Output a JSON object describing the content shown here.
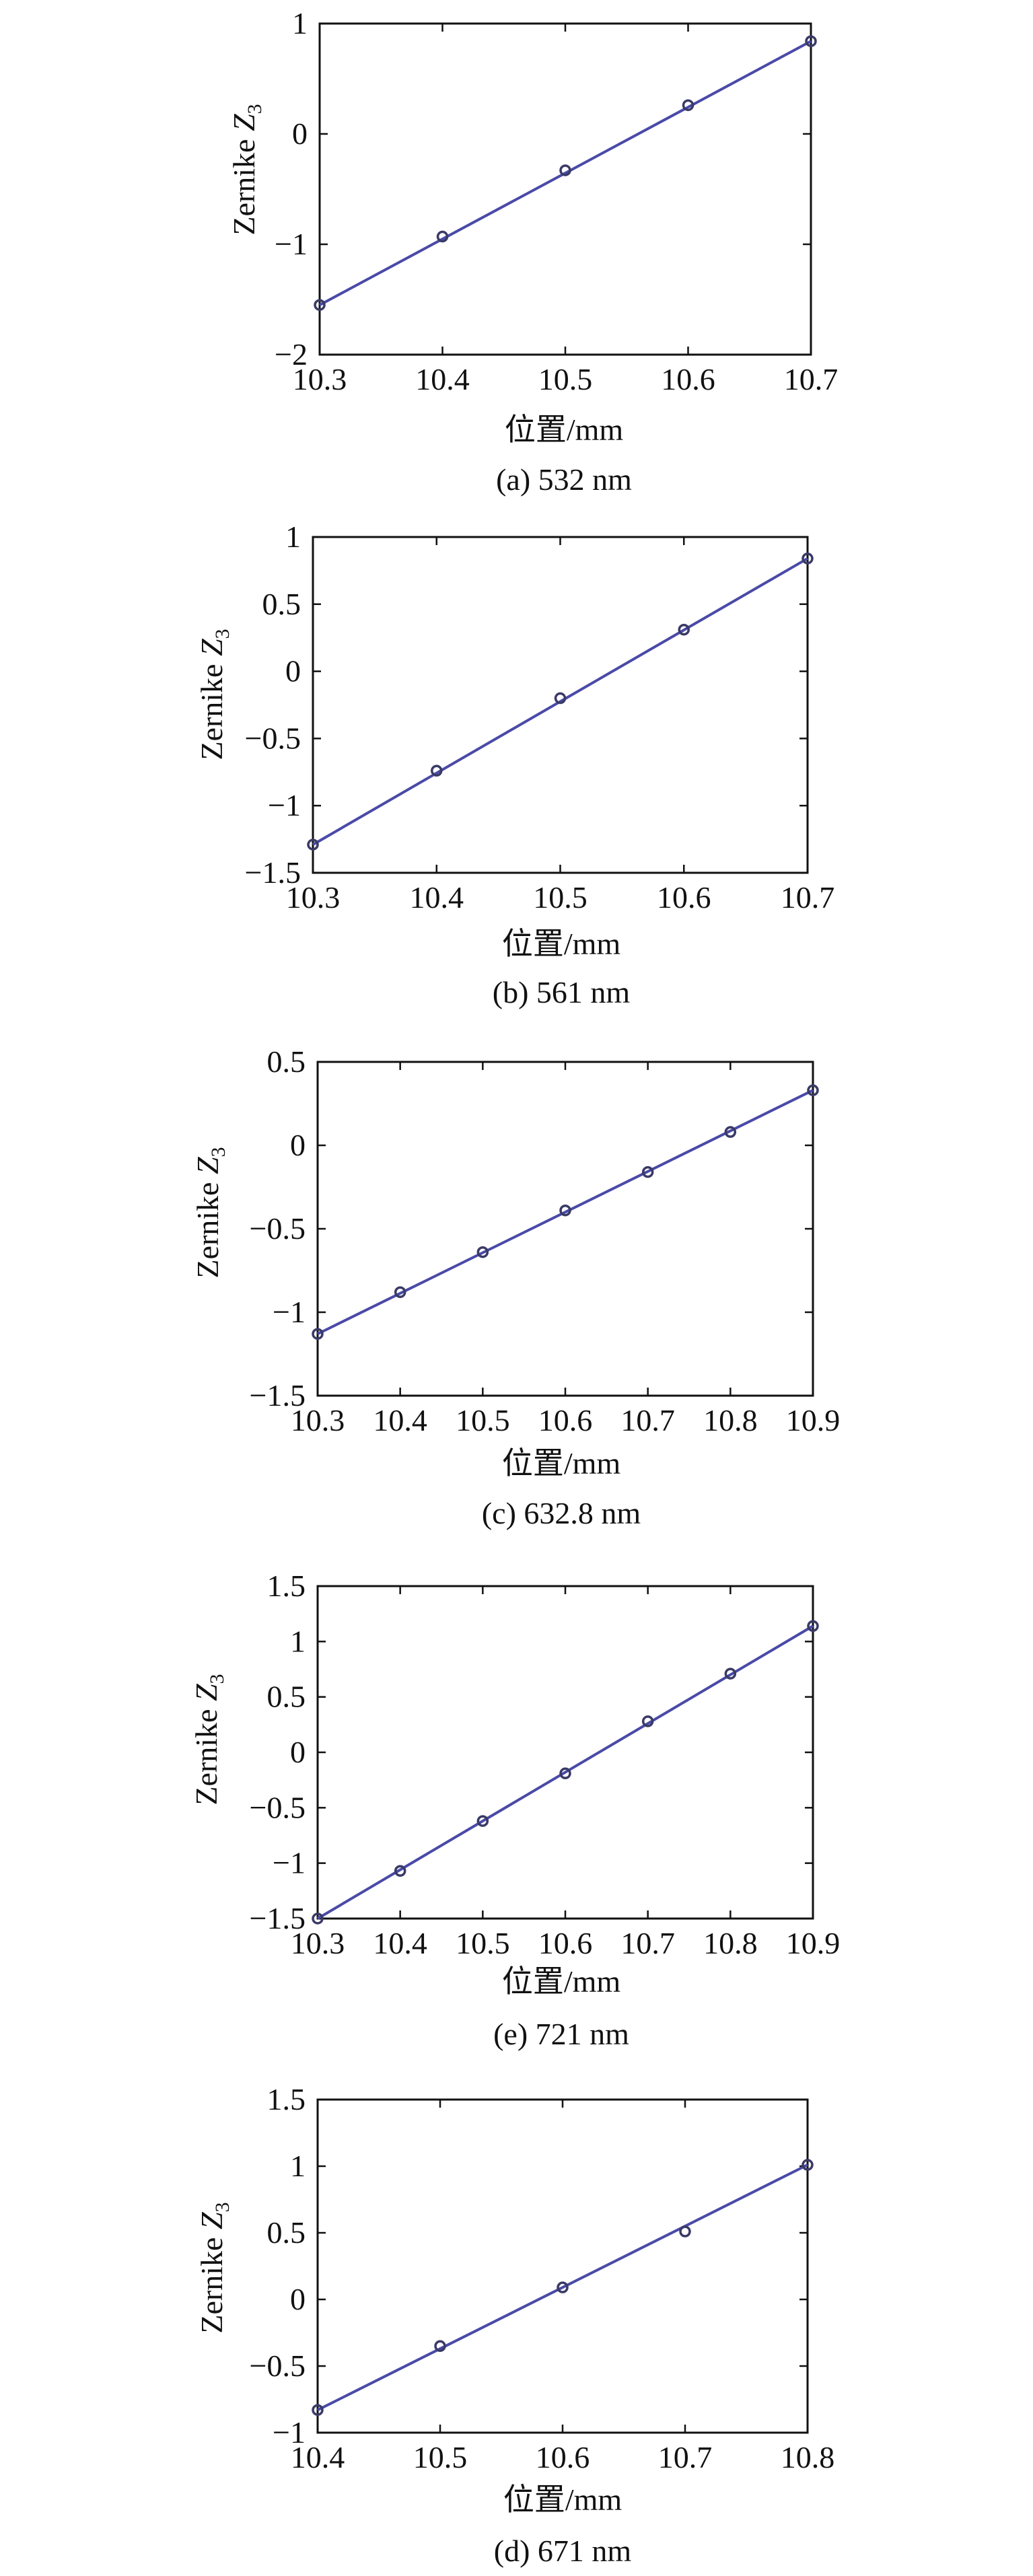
{
  "charts": [
    {
      "caption": "(a) 532 nm",
      "xlabel": "位置/mm",
      "ylabel_main": "Zernike ",
      "ylabel_var": "Z",
      "ylabel_sub": "3",
      "xlim": [
        10.3,
        10.7
      ],
      "ylim": [
        -2,
        1
      ],
      "xticks": [
        "10.3",
        "10.4",
        "10.5",
        "10.6",
        "10.7"
      ],
      "yticks": [
        "−2",
        "−1",
        "0",
        "1"
      ]
    },
    {
      "caption": "(b) 561 nm",
      "xlabel": "位置/mm",
      "ylabel_main": "Zernike ",
      "ylabel_var": "Z",
      "ylabel_sub": "3",
      "xlim": [
        10.3,
        10.7
      ],
      "ylim": [
        -1.5,
        1
      ],
      "xticks": [
        "10.3",
        "10.4",
        "10.5",
        "10.6",
        "10.7"
      ],
      "yticks": [
        "−1.5",
        "−1",
        "−0.5",
        "0",
        "0.5",
        "1"
      ]
    },
    {
      "caption": "(c) 632.8 nm",
      "xlabel": "位置/mm",
      "ylabel_main": "Zernike ",
      "ylabel_var": "Z",
      "ylabel_sub": "3",
      "xlim": [
        10.3,
        10.9
      ],
      "ylim": [
        -1.5,
        0.5
      ],
      "xticks": [
        "10.3",
        "10.4",
        "10.5",
        "10.6",
        "10.7",
        "10.8",
        "10.9"
      ],
      "yticks": [
        "−1.5",
        "−1",
        "−0.5",
        "0",
        "0.5"
      ]
    },
    {
      "caption": "(e) 721 nm",
      "xlabel": "位置/mm",
      "ylabel_main": "Zernike ",
      "ylabel_var": "Z",
      "ylabel_sub": "3",
      "xlim": [
        10.3,
        10.9
      ],
      "ylim": [
        -1.5,
        1.5
      ],
      "xticks": [
        "10.3",
        "10.4",
        "10.5",
        "10.6",
        "10.7",
        "10.8",
        "10.9"
      ],
      "yticks": [
        "−1.5",
        "−1",
        "−0.5",
        "0",
        "0.5",
        "1",
        "1.5"
      ]
    },
    {
      "caption": "(d) 671 nm",
      "xlabel": "位置/mm",
      "ylabel_main": "Zernike ",
      "ylabel_var": "Z",
      "ylabel_sub": "3",
      "xlim": [
        10.4,
        10.8
      ],
      "ylim": [
        -1,
        1.5
      ],
      "xticks": [
        "10.4",
        "10.5",
        "10.6",
        "10.7",
        "10.8"
      ],
      "yticks": [
        "−1",
        "−0.5",
        "0",
        "0.5",
        "1",
        "1.5"
      ]
    }
  ],
  "chart_data": [
    {
      "type": "scatter",
      "caption": "(a) 532 nm",
      "xlabel": "位置/mm",
      "ylabel": "Zernike Z3",
      "xlim": [
        10.3,
        10.7
      ],
      "ylim": [
        -2,
        1
      ],
      "grid": false,
      "points": {
        "x": [
          10.3,
          10.4,
          10.5,
          10.6,
          10.7
        ],
        "y": [
          -1.55,
          -0.93,
          -0.33,
          0.26,
          0.84
        ]
      },
      "fit_line": {
        "x": [
          10.3,
          10.7
        ],
        "y": [
          -1.55,
          0.84
        ]
      },
      "colors": {
        "line": "#4a4aa8",
        "marker": "#3a3a66"
      }
    },
    {
      "type": "scatter",
      "caption": "(b) 561 nm",
      "xlabel": "位置/mm",
      "ylabel": "Zernike Z3",
      "xlim": [
        10.3,
        10.7
      ],
      "ylim": [
        -1.5,
        1
      ],
      "grid": false,
      "points": {
        "x": [
          10.3,
          10.4,
          10.5,
          10.6,
          10.7
        ],
        "y": [
          -1.29,
          -0.74,
          -0.2,
          0.31,
          0.84
        ]
      },
      "fit_line": {
        "x": [
          10.3,
          10.7
        ],
        "y": [
          -1.29,
          0.84
        ]
      },
      "colors": {
        "line": "#4a4aa8",
        "marker": "#3a3a66"
      }
    },
    {
      "type": "scatter",
      "caption": "(c) 632.8 nm",
      "xlabel": "位置/mm",
      "ylabel": "Zernike Z3",
      "xlim": [
        10.3,
        10.9
      ],
      "ylim": [
        -1.5,
        0.5
      ],
      "grid": false,
      "points": {
        "x": [
          10.3,
          10.4,
          10.5,
          10.6,
          10.7,
          10.8,
          10.9
        ],
        "y": [
          -1.13,
          -0.88,
          -0.64,
          -0.39,
          -0.16,
          0.08,
          0.33
        ]
      },
      "fit_line": {
        "x": [
          10.3,
          10.9
        ],
        "y": [
          -1.13,
          0.33
        ]
      },
      "colors": {
        "line": "#4a4aa8",
        "marker": "#3a3a66"
      }
    },
    {
      "type": "scatter",
      "caption": "(e) 721 nm",
      "xlabel": "位置/mm",
      "ylabel": "Zernike Z3",
      "xlim": [
        10.3,
        10.9
      ],
      "ylim": [
        -1.5,
        1.5
      ],
      "grid": false,
      "points": {
        "x": [
          10.3,
          10.4,
          10.5,
          10.6,
          10.7,
          10.8,
          10.9
        ],
        "y": [
          -1.5,
          -1.07,
          -0.62,
          -0.19,
          0.28,
          0.71,
          1.14
        ]
      },
      "fit_line": {
        "x": [
          10.3,
          10.9
        ],
        "y": [
          -1.5,
          1.14
        ]
      },
      "colors": {
        "line": "#4a4aa8",
        "marker": "#3a3a66"
      }
    },
    {
      "type": "scatter",
      "caption": "(d) 671 nm",
      "xlabel": "位置/mm",
      "ylabel": "Zernike Z3",
      "xlim": [
        10.4,
        10.8
      ],
      "ylim": [
        -1,
        1.5
      ],
      "grid": false,
      "points": {
        "x": [
          10.4,
          10.5,
          10.6,
          10.7,
          10.8
        ],
        "y": [
          -0.83,
          -0.35,
          0.09,
          0.51,
          1.01
        ]
      },
      "fit_line": {
        "x": [
          10.4,
          10.8
        ],
        "y": [
          -0.83,
          1.01
        ]
      },
      "colors": {
        "line": "#4a4aa8",
        "marker": "#3a3a66"
      }
    }
  ]
}
